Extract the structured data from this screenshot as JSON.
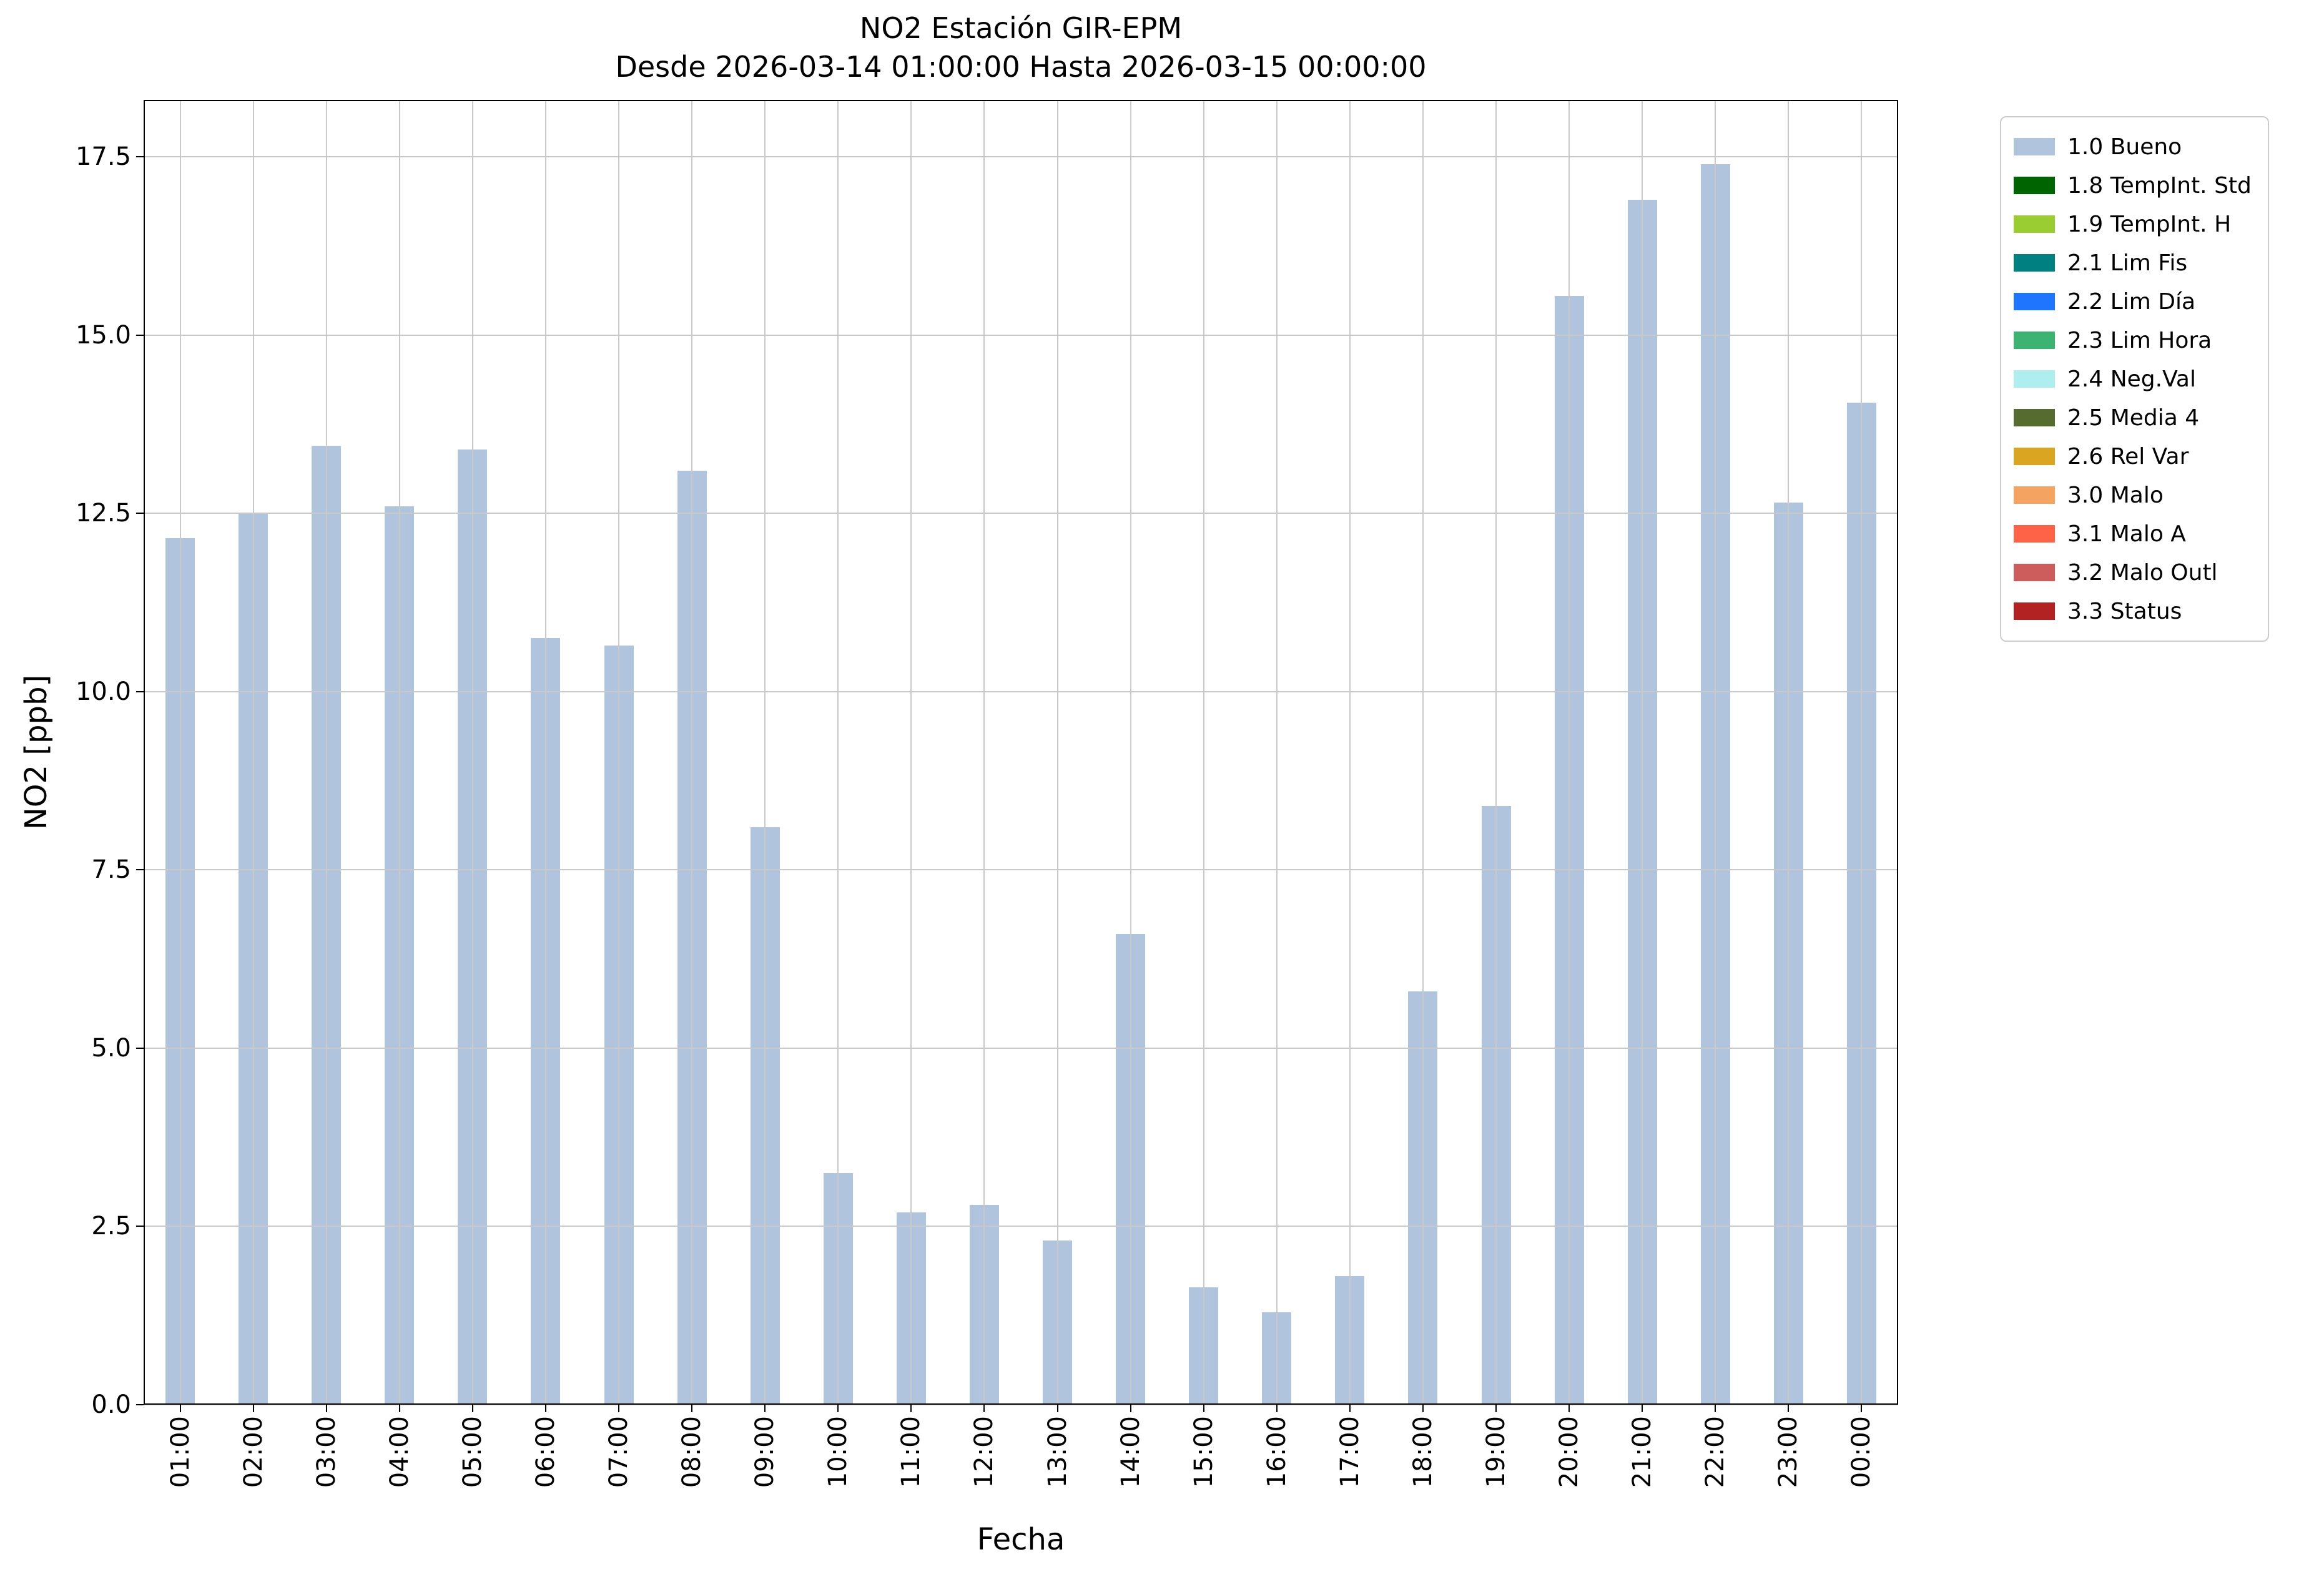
{
  "title": {
    "line1": "NO2 Estación GIR-EPM",
    "line2": "Desde 2026-03-14 01:00:00 Hasta 2026-03-15 00:00:00"
  },
  "chart_data": {
    "type": "bar",
    "title": "NO2 Estación GIR-EPM — Desde 2026-03-14 01:00:00 Hasta 2026-03-15 00:00:00",
    "xlabel": "Fecha",
    "ylabel": "NO2 [ppb]",
    "categories": [
      "01:00",
      "02:00",
      "03:00",
      "04:00",
      "05:00",
      "06:00",
      "07:00",
      "08:00",
      "09:00",
      "10:00",
      "11:00",
      "12:00",
      "13:00",
      "14:00",
      "15:00",
      "16:00",
      "17:00",
      "18:00",
      "19:00",
      "20:00",
      "21:00",
      "22:00",
      "23:00",
      "00:00"
    ],
    "values": [
      12.15,
      12.5,
      13.45,
      12.6,
      13.4,
      10.75,
      10.65,
      13.1,
      8.1,
      3.25,
      2.7,
      2.8,
      2.3,
      6.6,
      1.65,
      1.3,
      1.8,
      5.8,
      8.4,
      15.55,
      16.9,
      17.4,
      12.65,
      14.05
    ],
    "yticks": [
      0.0,
      2.5,
      5.0,
      7.5,
      10.0,
      12.5,
      15.0,
      17.5
    ],
    "ylim": [
      0,
      18.3
    ],
    "grid": true,
    "bar_color": "#b0c4de",
    "grid_color": "#c9c9c9",
    "legend_position": "outside-top-right",
    "legend": [
      {
        "label": "1.0 Bueno",
        "color": "#b0c4de"
      },
      {
        "label": "1.8 TempInt. Std",
        "color": "#006400"
      },
      {
        "label": "1.9 TempInt. H",
        "color": "#9acd32"
      },
      {
        "label": "2.1 Lim Fis",
        "color": "#008080"
      },
      {
        "label": "2.2 Lim Día",
        "color": "#1f75fe"
      },
      {
        "label": "2.3 Lim Hora",
        "color": "#3cb371"
      },
      {
        "label": "2.4 Neg.Val",
        "color": "#afeeee"
      },
      {
        "label": "2.5 Media 4",
        "color": "#556b2f"
      },
      {
        "label": "2.6 Rel Var",
        "color": "#daa520"
      },
      {
        "label": "3.0 Malo",
        "color": "#f4a460"
      },
      {
        "label": "3.1 Malo A",
        "color": "#ff6347"
      },
      {
        "label": "3.2 Malo Outl",
        "color": "#cd5c5c"
      },
      {
        "label": "3.3 Status",
        "color": "#b22222"
      }
    ]
  }
}
